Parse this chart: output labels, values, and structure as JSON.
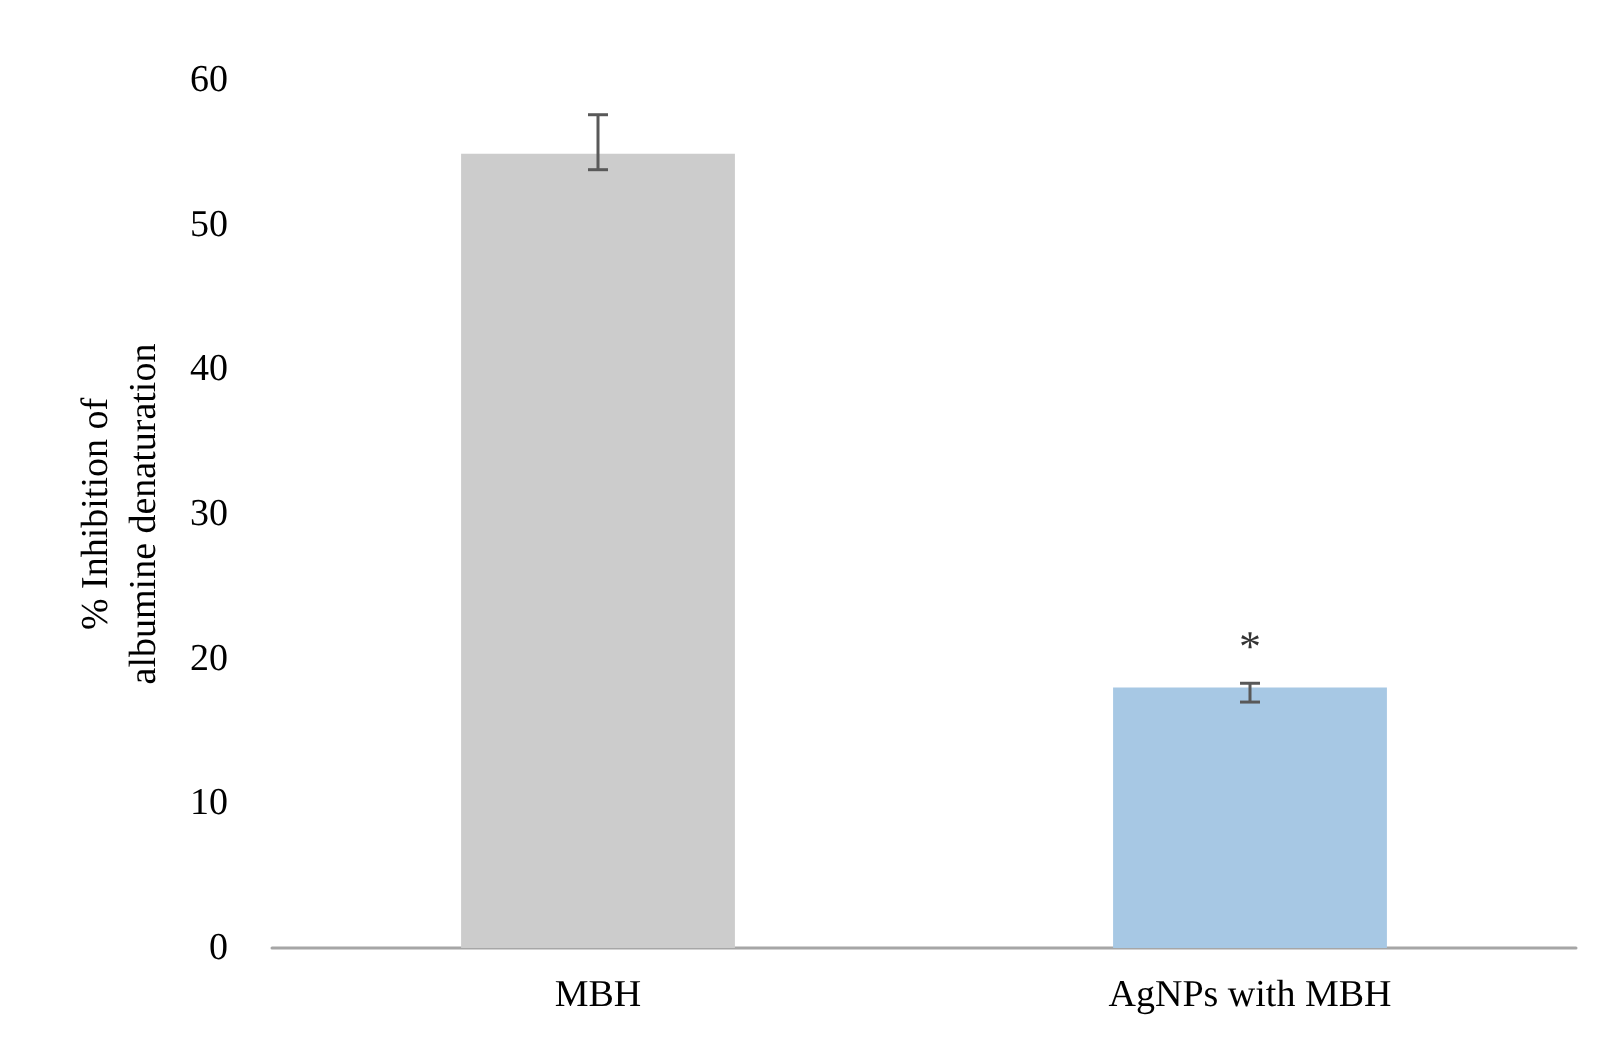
{
  "chart_data": {
    "type": "bar",
    "ylabel": "% Inhibition of\nalbumine denaturation",
    "categories": [
      "MBH",
      "AgNPs with MBH"
    ],
    "values": [
      54.9,
      18
    ],
    "colors": [
      "#cccccc",
      "#a7c8e4"
    ],
    "errors": [
      [
        53.8,
        57.6
      ],
      [
        17,
        18.3
      ]
    ],
    "ylim": [
      0,
      60
    ],
    "yticks": [
      0,
      10,
      20,
      30,
      40,
      50,
      60
    ],
    "grid": false,
    "annotations": [
      {
        "text": "*",
        "x": "AgNPs with MBH",
        "y": 18
      }
    ]
  }
}
